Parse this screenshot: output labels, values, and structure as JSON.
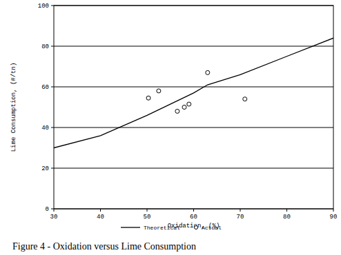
{
  "chart_data": {
    "type": "scatter",
    "title": "Figure 4 - Oxidation versus Lime Consumption",
    "x_label": "Oxidation, (%)",
    "y_label": "Lime Consumption, (#/tn)",
    "xlim": [
      30,
      90
    ],
    "xticks": [
      30,
      40,
      50,
      60,
      70,
      80,
      90
    ],
    "ylim": [
      0,
      100
    ],
    "yticks": [
      0,
      20,
      40,
      60,
      80,
      100
    ],
    "grid": true,
    "legend": "bottom",
    "series": [
      {
        "name": "Theoretical",
        "type": "line",
        "line_style": "solid",
        "color": "#000000",
        "x": [
          30,
          40,
          50,
          60,
          63,
          70,
          80,
          90
        ],
        "values": [
          30,
          36,
          46,
          57,
          61,
          66,
          75,
          84
        ]
      },
      {
        "name": "Actual",
        "type": "scatter",
        "marker": "circle",
        "color": "#000000",
        "x": [
          50.3,
          52.5,
          56.5,
          58,
          59,
          63,
          71
        ],
        "values": [
          54.5,
          58,
          48,
          50,
          51.5,
          67,
          54
        ]
      }
    ]
  }
}
